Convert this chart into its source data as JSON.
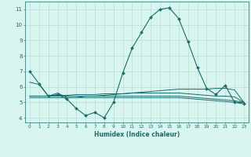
{
  "xlabel": "Humidex (Indice chaleur)",
  "x_values": [
    0,
    1,
    2,
    3,
    4,
    5,
    6,
    7,
    8,
    9,
    10,
    11,
    12,
    13,
    14,
    15,
    16,
    17,
    18,
    19,
    20,
    21,
    22,
    23
  ],
  "line1": [
    7.0,
    6.2,
    5.4,
    5.5,
    5.2,
    4.6,
    4.15,
    4.35,
    4.0,
    5.0,
    6.9,
    8.5,
    9.5,
    10.5,
    11.0,
    11.1,
    10.4,
    8.9,
    7.25,
    5.9,
    5.5,
    6.1,
    5.0,
    4.9
  ],
  "line2": [
    6.3,
    6.15,
    5.4,
    5.6,
    5.3,
    5.3,
    5.4,
    5.4,
    5.45,
    5.5,
    5.55,
    5.6,
    5.65,
    5.7,
    5.75,
    5.8,
    5.85,
    5.85,
    5.85,
    5.85,
    5.9,
    5.9,
    5.8,
    5.0
  ],
  "line3": [
    5.4,
    5.4,
    5.4,
    5.45,
    5.45,
    5.5,
    5.5,
    5.5,
    5.55,
    5.55,
    5.55,
    5.6,
    5.6,
    5.6,
    5.6,
    5.6,
    5.6,
    5.55,
    5.5,
    5.45,
    5.4,
    5.4,
    5.35,
    5.0
  ],
  "line4": [
    5.4,
    5.4,
    5.4,
    5.4,
    5.4,
    5.4,
    5.4,
    5.4,
    5.4,
    5.4,
    5.4,
    5.4,
    5.4,
    5.4,
    5.4,
    5.4,
    5.4,
    5.35,
    5.3,
    5.25,
    5.2,
    5.15,
    5.1,
    5.0
  ],
  "line5": [
    5.3,
    5.3,
    5.3,
    5.3,
    5.3,
    5.3,
    5.3,
    5.3,
    5.3,
    5.3,
    5.3,
    5.3,
    5.3,
    5.3,
    5.3,
    5.3,
    5.3,
    5.25,
    5.2,
    5.15,
    5.1,
    5.05,
    5.0,
    5.0
  ],
  "line_color": "#1a6b6b",
  "bg_color": "#d8f5f0",
  "grid_color": "#b8ddd8",
  "ylim": [
    3.7,
    11.5
  ],
  "xlim": [
    -0.5,
    23.5
  ],
  "yticks": [
    4,
    5,
    6,
    7,
    8,
    9,
    10,
    11
  ],
  "xticks": [
    0,
    1,
    2,
    3,
    4,
    5,
    6,
    7,
    8,
    9,
    10,
    11,
    12,
    13,
    14,
    15,
    16,
    17,
    18,
    19,
    20,
    21,
    22,
    23
  ]
}
